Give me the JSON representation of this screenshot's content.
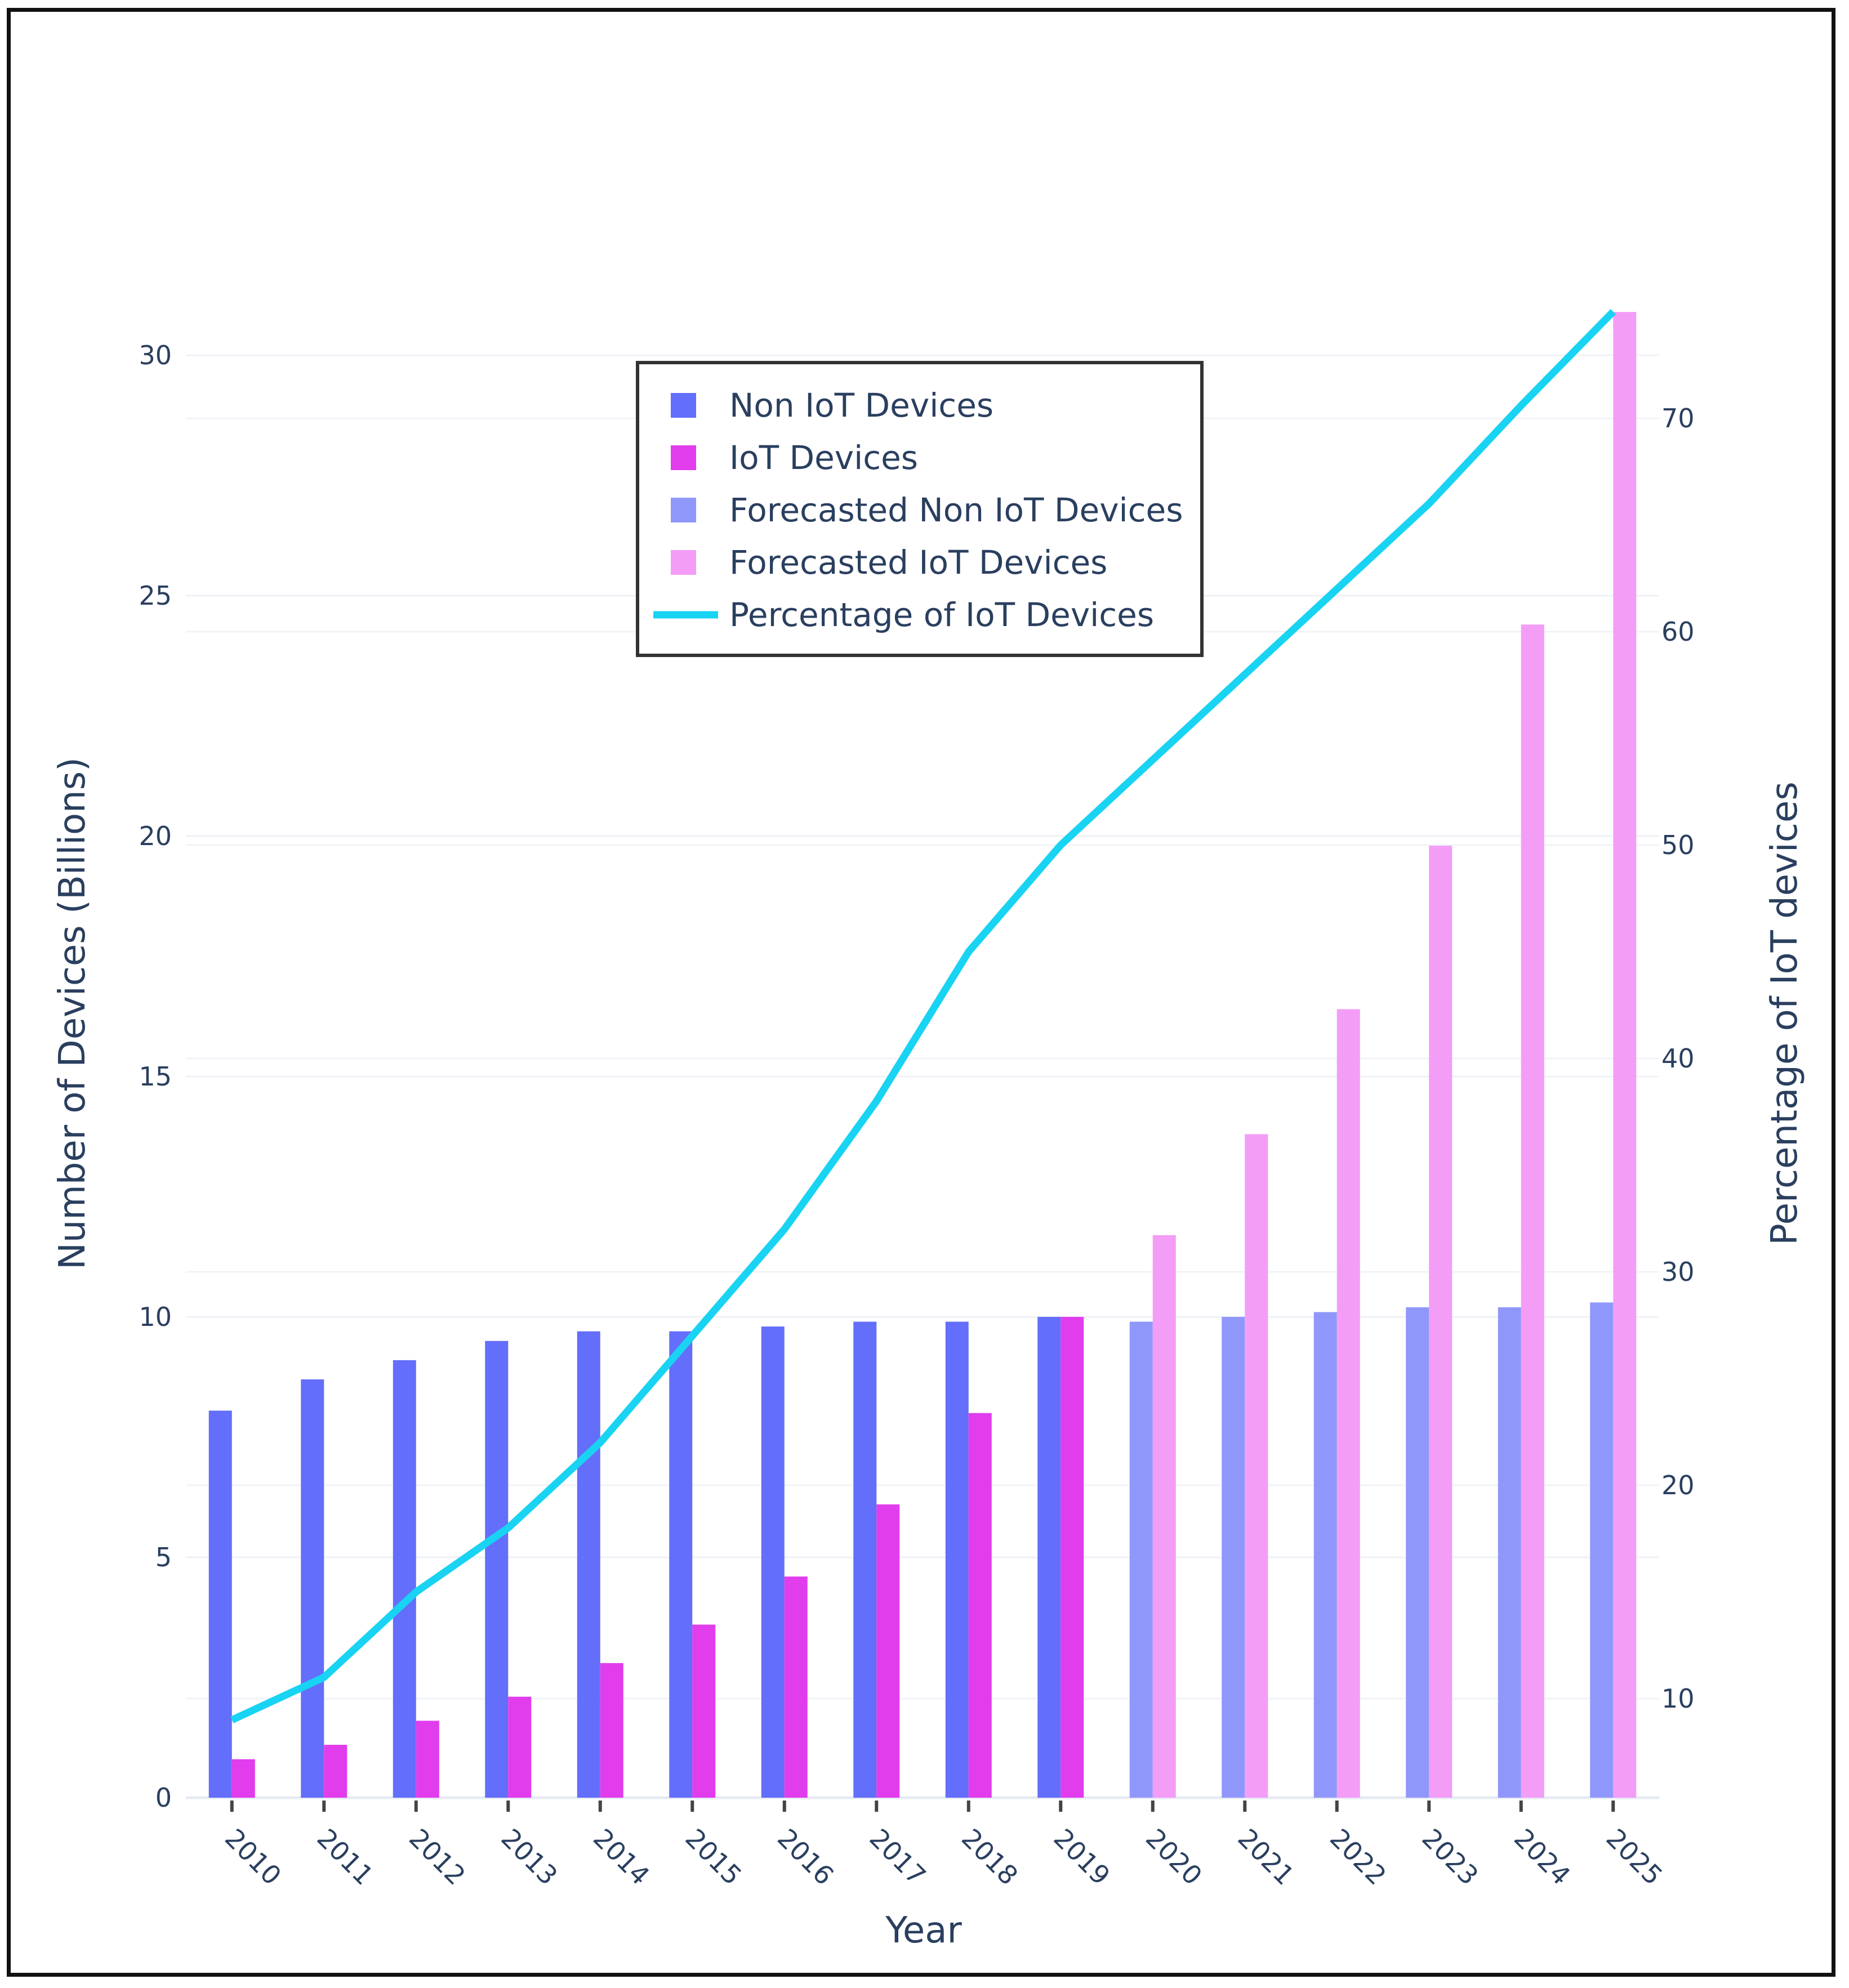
{
  "chart_data": {
    "type": "bar",
    "title": "",
    "xlabel": "Year",
    "ylabel": "Number of Devices (Billions)",
    "y2label": "Percentage of IoT devices",
    "categories": [
      "2010",
      "2011",
      "2012",
      "2013",
      "2014",
      "2015",
      "2016",
      "2017",
      "2018",
      "2019",
      "2020",
      "2021",
      "2022",
      "2023",
      "2024",
      "2025"
    ],
    "ylim": [
      0,
      30.9
    ],
    "y_ticks": [
      0,
      5,
      10,
      15,
      20,
      25,
      30
    ],
    "y2lim": [
      5.4,
      75
    ],
    "y2_ticks": [
      10,
      20,
      30,
      40,
      50,
      60,
      70
    ],
    "grid": true,
    "legend_position": "top-center",
    "series": [
      {
        "name": "Non IoT Devices",
        "type": "bar",
        "axis": "left",
        "color": "#636efa",
        "values": [
          8.05,
          8.7,
          9.1,
          9.5,
          9.7,
          9.7,
          9.8,
          9.9,
          9.9,
          10.0,
          null,
          null,
          null,
          null,
          null,
          null
        ]
      },
      {
        "name": "IoT Devices",
        "type": "bar",
        "axis": "left",
        "color": "#e23ded",
        "values": [
          0.8,
          1.1,
          1.6,
          2.1,
          2.8,
          3.6,
          4.6,
          6.1,
          8.0,
          10.0,
          null,
          null,
          null,
          null,
          null,
          null
        ]
      },
      {
        "name": "Forecasted Non IoT Devices",
        "type": "bar",
        "axis": "left",
        "color": "#9097fb",
        "values": [
          null,
          null,
          null,
          null,
          null,
          null,
          null,
          null,
          null,
          null,
          9.9,
          10.0,
          10.1,
          10.2,
          10.2,
          10.3
        ]
      },
      {
        "name": "Forecasted IoT Devices",
        "type": "bar",
        "axis": "left",
        "color": "#f39df7",
        "values": [
          null,
          null,
          null,
          null,
          null,
          null,
          null,
          null,
          null,
          null,
          11.7,
          13.8,
          16.4,
          19.8,
          24.4,
          30.9
        ]
      },
      {
        "name": "Percentage of IoT Devices",
        "type": "line",
        "axis": "right",
        "color": "#19d3f3",
        "values": [
          9,
          11,
          15,
          18,
          22,
          27,
          32,
          38,
          45,
          50,
          54,
          58,
          62,
          66,
          70.6,
          75
        ]
      }
    ]
  }
}
